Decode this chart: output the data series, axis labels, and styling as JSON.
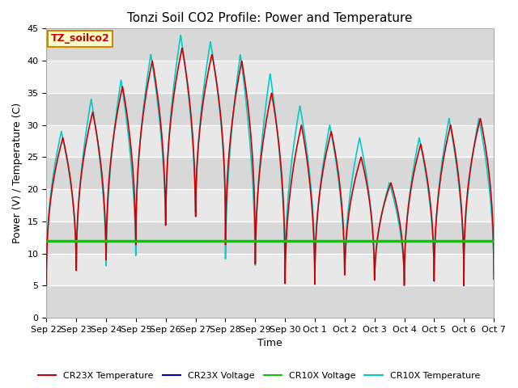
{
  "title": "Tonzi Soil CO2 Profile: Power and Temperature",
  "xlabel": "Time",
  "ylabel": "Power (V) / Temperature (C)",
  "ylim": [
    0,
    45
  ],
  "annotation_text": "TZ_soilco2",
  "annotation_color": "#cc0000",
  "annotation_bg": "#ffffcc",
  "annotation_border": "#cc8800",
  "cr23x_temp_color": "#cc0000",
  "cr23x_volt_color": "#0000bb",
  "cr10x_volt_color": "#00cc00",
  "cr10x_temp_color": "#00cccc",
  "plot_bg": "#e8e8e8",
  "band_color_light": "#f0f0f0",
  "band_color_dark": "#d8d8d8",
  "constant_volt": 11.9,
  "x_tick_labels": [
    "Sep 22",
    "Sep 23",
    "Sep 24",
    "Sep 25",
    "Sep 26",
    "Sep 27",
    "Sep 28",
    "Sep 29",
    "Sep 30",
    "Oct 1",
    "Oct 2",
    "Oct 3",
    "Oct 4",
    "Oct 5",
    "Oct 6",
    "Oct 7"
  ],
  "legend_entries": [
    "CR23X Temperature",
    "CR23X Voltage",
    "CR10X Voltage",
    "CR10X Temperature"
  ],
  "peak_temps_r": [
    28,
    32,
    36,
    40,
    42,
    41,
    40,
    35,
    30,
    29,
    25,
    21,
    27,
    30,
    31
  ],
  "trough_temps_r": [
    5,
    6,
    7,
    10,
    12,
    13,
    8,
    5,
    2,
    4,
    4,
    3.5,
    4,
    3.5,
    6
  ],
  "peak_temps_c": [
    29,
    34,
    37,
    41,
    44,
    43,
    41,
    38,
    33,
    30,
    28,
    21,
    28,
    31,
    31
  ],
  "trough_temps_c": [
    8,
    7,
    7,
    12,
    14,
    15,
    7,
    6,
    7,
    6,
    6,
    5,
    6,
    6,
    7
  ],
  "n_days": 15,
  "pts_per_day": 200
}
